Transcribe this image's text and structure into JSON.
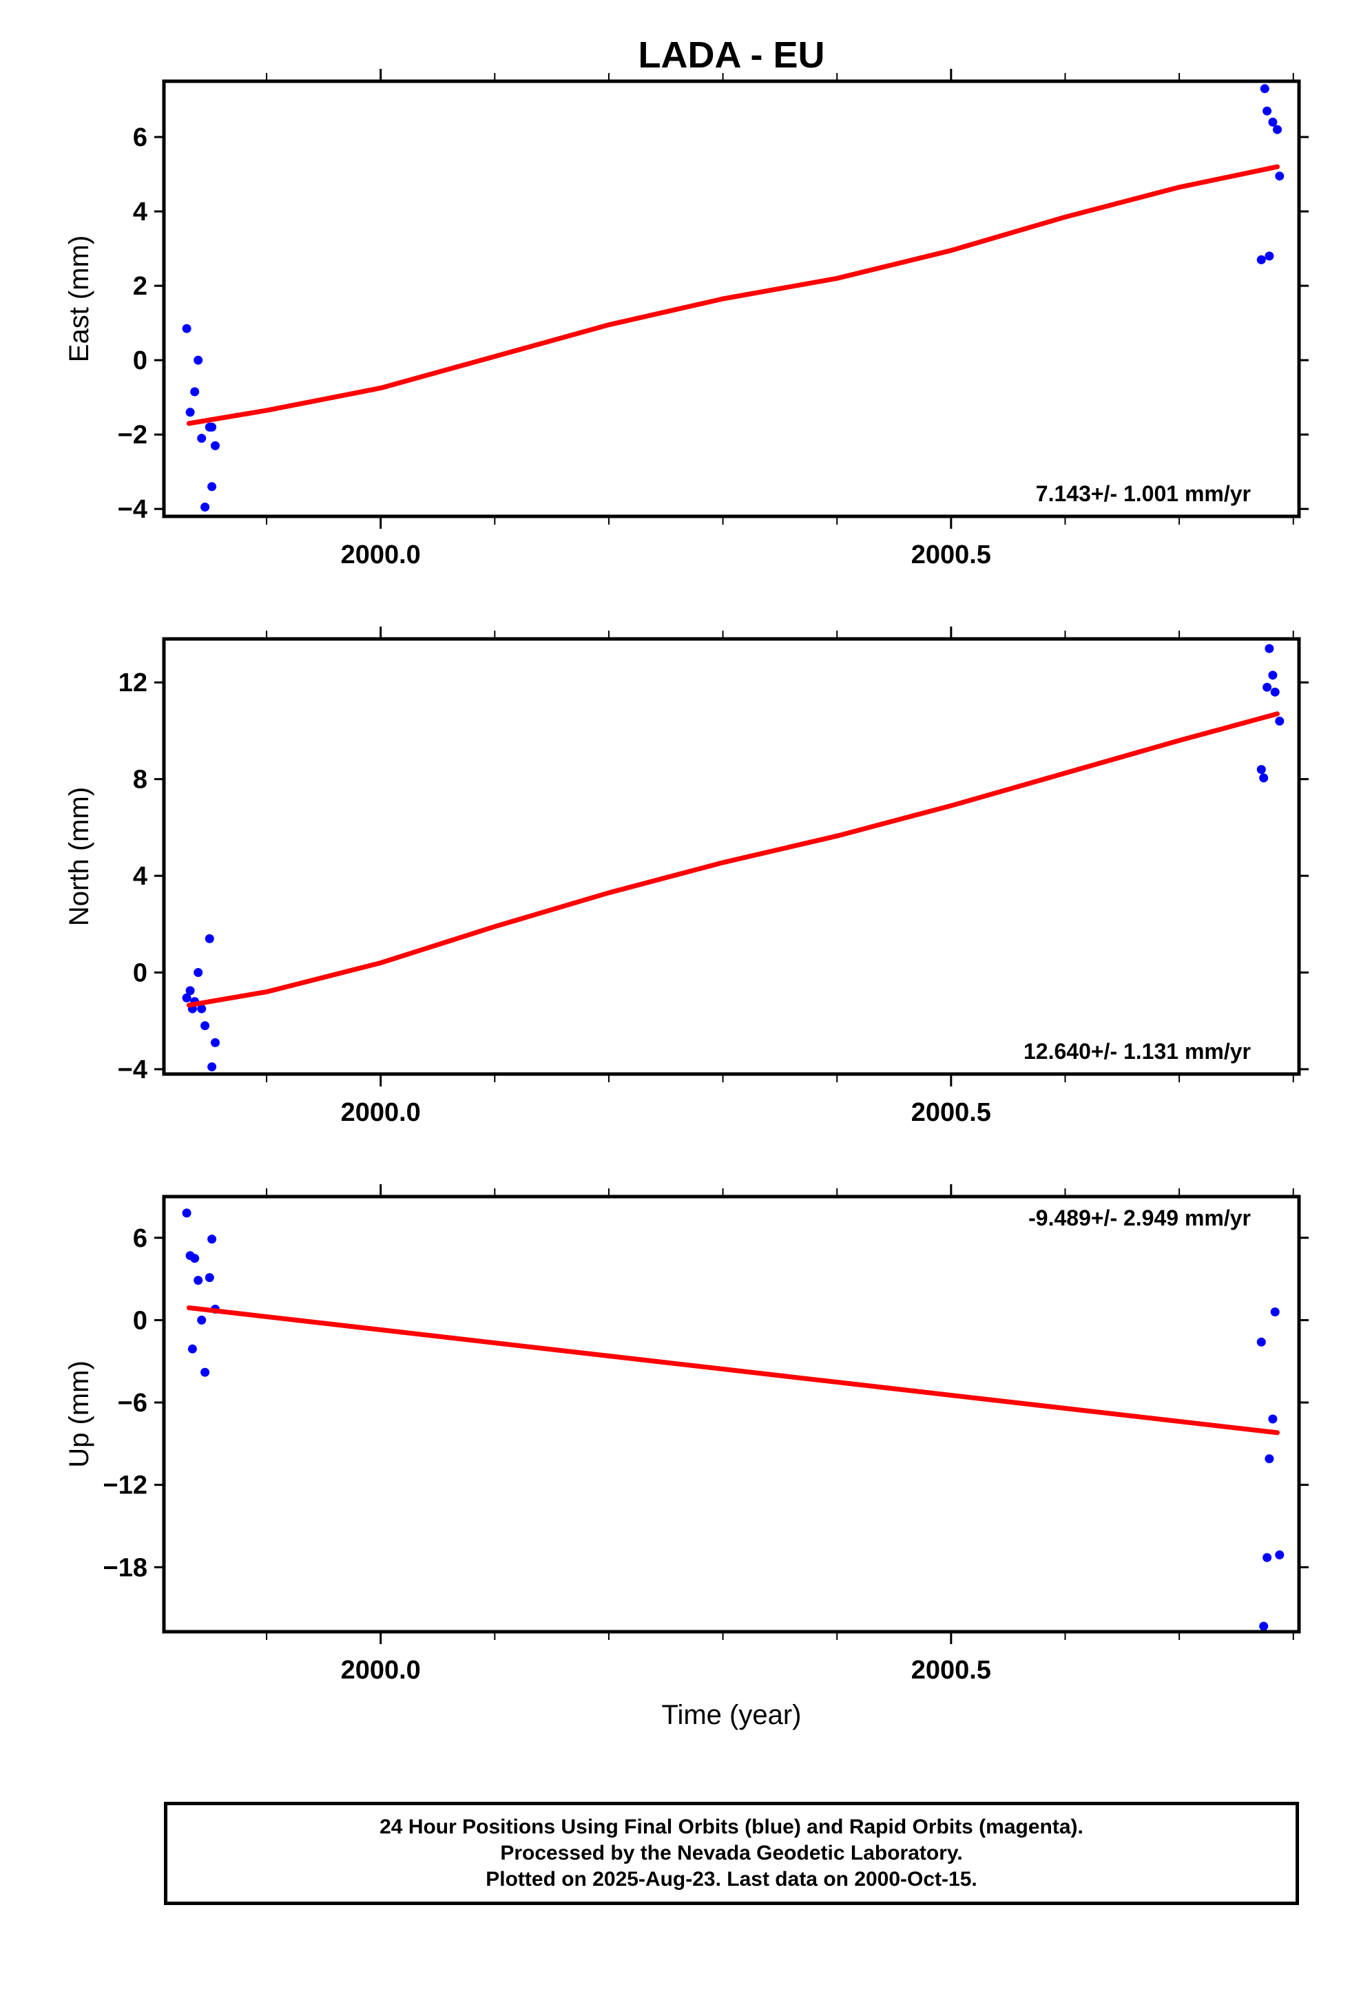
{
  "chart_data": [
    {
      "type": "scatter",
      "id": "east",
      "title": "LADA - EU",
      "ylabel": "East (mm)",
      "xlabel": "",
      "xlim": [
        1999.81,
        2000.805
      ],
      "ylim": [
        -4.2,
        7.5
      ],
      "x_ticks": [
        {
          "value": 2000.0,
          "label": "2000.0"
        },
        {
          "value": 2000.5,
          "label": "2000.5"
        }
      ],
      "x_minor_ticks": [
        1999.9,
        2000.1,
        2000.2,
        2000.3,
        2000.4,
        2000.6,
        2000.7,
        2000.8
      ],
      "y_ticks": [
        {
          "value": -4,
          "label": "−4"
        },
        {
          "value": -2,
          "label": "−2"
        },
        {
          "value": 0,
          "label": "0"
        },
        {
          "value": 2,
          "label": "2"
        },
        {
          "value": 4,
          "label": "4"
        },
        {
          "value": 6,
          "label": "6"
        }
      ],
      "series": [
        {
          "kind": "points",
          "color": "#0000ff",
          "x": [
            1999.83,
            1999.833,
            1999.837,
            1999.84,
            1999.843,
            1999.846,
            1999.85,
            1999.852,
            1999.855,
            1999.852,
            2000.772,
            2000.775,
            2000.777,
            2000.782,
            2000.786,
            2000.788,
            2000.779
          ],
          "y": [
            0.85,
            -1.4,
            -0.85,
            0.0,
            -2.1,
            -3.95,
            -1.8,
            -3.4,
            -2.3,
            -1.8,
            2.7,
            7.3,
            6.7,
            6.4,
            6.2,
            4.95,
            2.8
          ]
        },
        {
          "kind": "line",
          "color": "#ff0000",
          "x": [
            1999.832,
            1999.9,
            2000.0,
            2000.1,
            2000.2,
            2000.3,
            2000.4,
            2000.5,
            2000.6,
            2000.7,
            2000.786
          ],
          "y": [
            -1.7,
            -1.35,
            -0.75,
            0.1,
            0.95,
            1.65,
            2.2,
            2.95,
            3.85,
            4.65,
            5.2
          ]
        }
      ],
      "annotation": "7.143+/- 1.001 mm/yr",
      "annotation_position": "bottom-right"
    },
    {
      "type": "scatter",
      "id": "north",
      "ylabel": "North (mm)",
      "xlabel": "",
      "xlim": [
        1999.81,
        2000.805
      ],
      "ylim": [
        -4.2,
        13.8
      ],
      "x_ticks": [
        {
          "value": 2000.0,
          "label": "2000.0"
        },
        {
          "value": 2000.5,
          "label": "2000.5"
        }
      ],
      "x_minor_ticks": [
        1999.9,
        2000.1,
        2000.2,
        2000.3,
        2000.4,
        2000.6,
        2000.7,
        2000.8
      ],
      "y_ticks": [
        {
          "value": -4,
          "label": "−4"
        },
        {
          "value": 0,
          "label": "0"
        },
        {
          "value": 4,
          "label": "4"
        },
        {
          "value": 8,
          "label": "8"
        },
        {
          "value": 12,
          "label": "12"
        }
      ],
      "series": [
        {
          "kind": "points",
          "color": "#0000ff",
          "x": [
            1999.83,
            1999.833,
            1999.837,
            1999.84,
            1999.843,
            1999.846,
            1999.85,
            1999.852,
            1999.855,
            1999.835,
            2000.772,
            2000.774,
            2000.777,
            2000.779,
            2000.782,
            2000.784,
            2000.788
          ],
          "y": [
            -1.05,
            -0.75,
            -1.2,
            0.0,
            -1.5,
            -2.2,
            1.4,
            -3.9,
            -2.9,
            -1.5,
            8.4,
            8.05,
            11.8,
            13.4,
            12.3,
            11.6,
            10.4
          ]
        },
        {
          "kind": "line",
          "color": "#ff0000",
          "x": [
            1999.832,
            1999.9,
            2000.0,
            2000.1,
            2000.2,
            2000.3,
            2000.4,
            2000.5,
            2000.6,
            2000.7,
            2000.786
          ],
          "y": [
            -1.35,
            -0.8,
            0.4,
            1.9,
            3.3,
            4.55,
            5.65,
            6.9,
            8.25,
            9.6,
            10.7
          ]
        }
      ],
      "annotation": "12.640+/- 1.131 mm/yr",
      "annotation_position": "bottom-right"
    },
    {
      "type": "scatter",
      "id": "up",
      "ylabel": "Up (mm)",
      "xlabel": "Time (year)",
      "xlim": [
        1999.81,
        2000.805
      ],
      "ylim": [
        -22.7,
        9.0
      ],
      "x_ticks": [
        {
          "value": 2000.0,
          "label": "2000.0"
        },
        {
          "value": 2000.5,
          "label": "2000.5"
        }
      ],
      "x_minor_ticks": [
        1999.9,
        2000.1,
        2000.2,
        2000.3,
        2000.4,
        2000.6,
        2000.7,
        2000.8
      ],
      "y_ticks": [
        {
          "value": -18,
          "label": "−18"
        },
        {
          "value": -12,
          "label": "−12"
        },
        {
          "value": -6,
          "label": "−6"
        },
        {
          "value": 0,
          "label": "0"
        },
        {
          "value": 6,
          "label": "6"
        }
      ],
      "series": [
        {
          "kind": "points",
          "color": "#0000ff",
          "x": [
            1999.83,
            1999.833,
            1999.835,
            1999.837,
            1999.84,
            1999.843,
            1999.846,
            1999.85,
            1999.852,
            1999.855,
            2000.772,
            2000.774,
            2000.777,
            2000.779,
            2000.782,
            2000.784,
            2000.788
          ],
          "y": [
            7.8,
            4.7,
            -2.1,
            4.5,
            2.9,
            0.0,
            -3.8,
            3.1,
            5.9,
            0.8,
            -1.6,
            -22.3,
            -17.3,
            -10.1,
            -7.2,
            0.6,
            -17.1
          ]
        },
        {
          "kind": "line",
          "color": "#ff0000",
          "x": [
            1999.832,
            2000.786
          ],
          "y": [
            0.9,
            -8.2
          ]
        }
      ],
      "annotation": "-9.489+/- 2.949 mm/yr",
      "annotation_position": "top-right"
    }
  ],
  "footer": {
    "line1": "24 Hour Positions Using Final Orbits (blue) and Rapid Orbits (magenta).",
    "line2": "Processed by the Nevada Geodetic Laboratory.",
    "line3": "Plotted on 2025-Aug-23. Last data on 2000-Oct-15."
  }
}
